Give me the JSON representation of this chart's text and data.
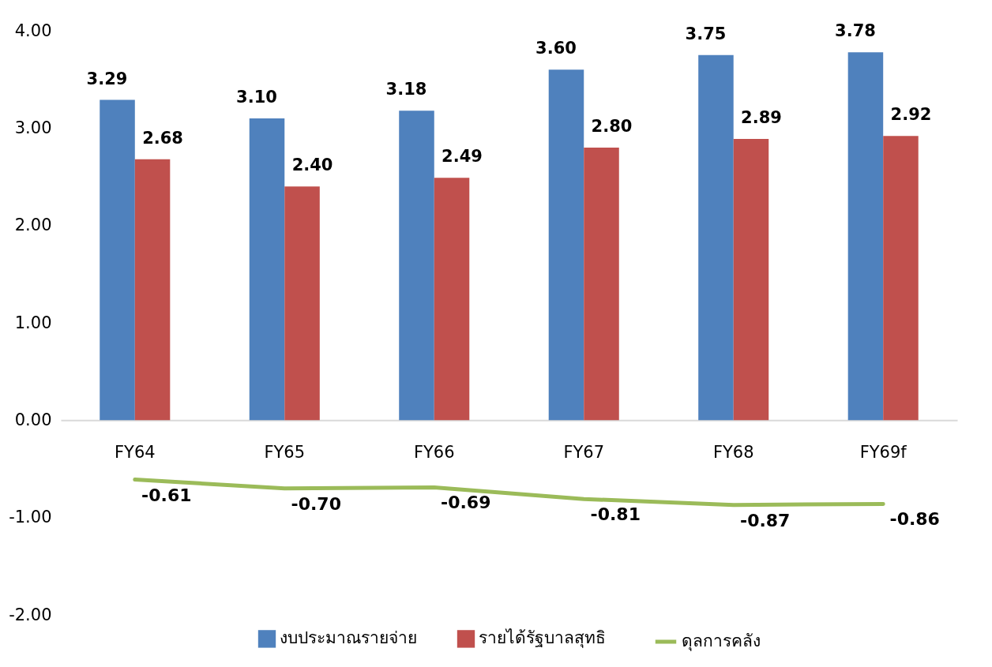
{
  "chart_data": {
    "type": "bar",
    "categories": [
      "FY64",
      "FY65",
      "FY66",
      "FY67",
      "FY68",
      "FY69f"
    ],
    "series": [
      {
        "name": "งบประมาณรายจ่าย",
        "color": "#4f81bd",
        "values": [
          3.29,
          3.1,
          3.18,
          3.6,
          3.75,
          3.78
        ],
        "value_labels": [
          "3.29",
          "3.10",
          "3.18",
          "3.60",
          "3.75",
          "3.78"
        ]
      },
      {
        "name": "รายได้รัฐบาลสุทธิ",
        "color": "#c0504d",
        "values": [
          2.68,
          2.4,
          2.49,
          2.8,
          2.89,
          2.92
        ],
        "value_labels": [
          "2.68",
          "2.40",
          "2.49",
          "2.80",
          "2.89",
          "2.92"
        ]
      },
      {
        "name": "ดุลการคลัง",
        "type": "line",
        "color": "#9bbb59",
        "values": [
          -0.61,
          -0.7,
          -0.69,
          -0.81,
          -0.87,
          -0.86
        ],
        "value_labels": [
          "-0.61",
          "-0.70",
          "-0.69",
          "-0.81",
          "-0.87",
          "-0.86"
        ]
      }
    ],
    "ylim": [
      -2,
      4
    ],
    "yticks": [
      {
        "value": -2,
        "label": "-2.00"
      },
      {
        "value": -1,
        "label": "-1.00"
      },
      {
        "value": 0,
        "label": "0.00"
      },
      {
        "value": 1,
        "label": "1.00"
      },
      {
        "value": 2,
        "label": "2.00"
      },
      {
        "value": 3,
        "label": "3.00"
      },
      {
        "value": 4,
        "label": "4.00"
      }
    ],
    "legend": "bottom"
  }
}
